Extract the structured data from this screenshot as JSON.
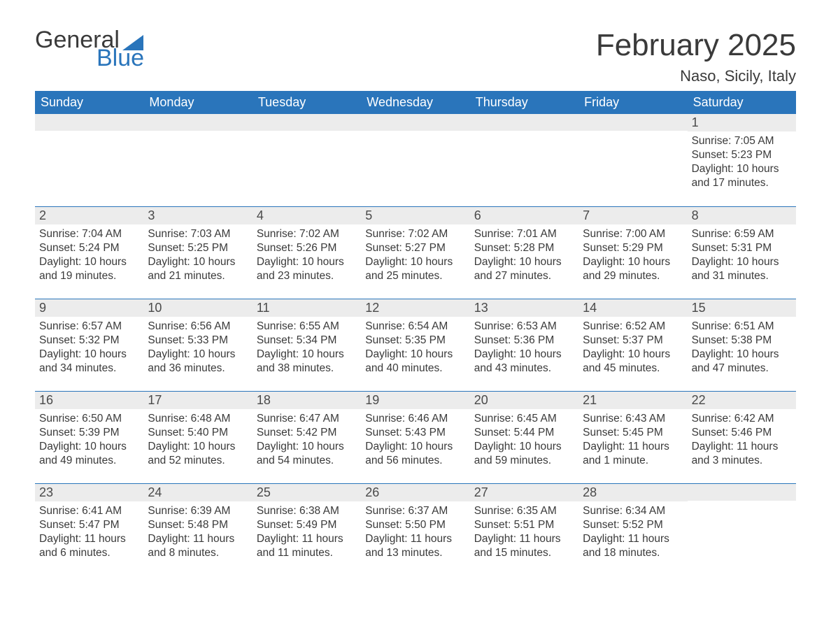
{
  "logo": {
    "word1": "General",
    "word2": "Blue"
  },
  "header": {
    "title": "February 2025",
    "location": "Naso, Sicily, Italy"
  },
  "colors": {
    "accent": "#2a75bb",
    "row_bg": "#ececec",
    "text": "#3a3a3a"
  },
  "weekdays": [
    "Sunday",
    "Monday",
    "Tuesday",
    "Wednesday",
    "Thursday",
    "Friday",
    "Saturday"
  ],
  "weeks": [
    [
      {
        "num": "",
        "sunrise": "",
        "sunset": "",
        "daylight": ""
      },
      {
        "num": "",
        "sunrise": "",
        "sunset": "",
        "daylight": ""
      },
      {
        "num": "",
        "sunrise": "",
        "sunset": "",
        "daylight": ""
      },
      {
        "num": "",
        "sunrise": "",
        "sunset": "",
        "daylight": ""
      },
      {
        "num": "",
        "sunrise": "",
        "sunset": "",
        "daylight": ""
      },
      {
        "num": "",
        "sunrise": "",
        "sunset": "",
        "daylight": ""
      },
      {
        "num": "1",
        "sunrise": "Sunrise: 7:05 AM",
        "sunset": "Sunset: 5:23 PM",
        "daylight": "Daylight: 10 hours and 17 minutes."
      }
    ],
    [
      {
        "num": "2",
        "sunrise": "Sunrise: 7:04 AM",
        "sunset": "Sunset: 5:24 PM",
        "daylight": "Daylight: 10 hours and 19 minutes."
      },
      {
        "num": "3",
        "sunrise": "Sunrise: 7:03 AM",
        "sunset": "Sunset: 5:25 PM",
        "daylight": "Daylight: 10 hours and 21 minutes."
      },
      {
        "num": "4",
        "sunrise": "Sunrise: 7:02 AM",
        "sunset": "Sunset: 5:26 PM",
        "daylight": "Daylight: 10 hours and 23 minutes."
      },
      {
        "num": "5",
        "sunrise": "Sunrise: 7:02 AM",
        "sunset": "Sunset: 5:27 PM",
        "daylight": "Daylight: 10 hours and 25 minutes."
      },
      {
        "num": "6",
        "sunrise": "Sunrise: 7:01 AM",
        "sunset": "Sunset: 5:28 PM",
        "daylight": "Daylight: 10 hours and 27 minutes."
      },
      {
        "num": "7",
        "sunrise": "Sunrise: 7:00 AM",
        "sunset": "Sunset: 5:29 PM",
        "daylight": "Daylight: 10 hours and 29 minutes."
      },
      {
        "num": "8",
        "sunrise": "Sunrise: 6:59 AM",
        "sunset": "Sunset: 5:31 PM",
        "daylight": "Daylight: 10 hours and 31 minutes."
      }
    ],
    [
      {
        "num": "9",
        "sunrise": "Sunrise: 6:57 AM",
        "sunset": "Sunset: 5:32 PM",
        "daylight": "Daylight: 10 hours and 34 minutes."
      },
      {
        "num": "10",
        "sunrise": "Sunrise: 6:56 AM",
        "sunset": "Sunset: 5:33 PM",
        "daylight": "Daylight: 10 hours and 36 minutes."
      },
      {
        "num": "11",
        "sunrise": "Sunrise: 6:55 AM",
        "sunset": "Sunset: 5:34 PM",
        "daylight": "Daylight: 10 hours and 38 minutes."
      },
      {
        "num": "12",
        "sunrise": "Sunrise: 6:54 AM",
        "sunset": "Sunset: 5:35 PM",
        "daylight": "Daylight: 10 hours and 40 minutes."
      },
      {
        "num": "13",
        "sunrise": "Sunrise: 6:53 AM",
        "sunset": "Sunset: 5:36 PM",
        "daylight": "Daylight: 10 hours and 43 minutes."
      },
      {
        "num": "14",
        "sunrise": "Sunrise: 6:52 AM",
        "sunset": "Sunset: 5:37 PM",
        "daylight": "Daylight: 10 hours and 45 minutes."
      },
      {
        "num": "15",
        "sunrise": "Sunrise: 6:51 AM",
        "sunset": "Sunset: 5:38 PM",
        "daylight": "Daylight: 10 hours and 47 minutes."
      }
    ],
    [
      {
        "num": "16",
        "sunrise": "Sunrise: 6:50 AM",
        "sunset": "Sunset: 5:39 PM",
        "daylight": "Daylight: 10 hours and 49 minutes."
      },
      {
        "num": "17",
        "sunrise": "Sunrise: 6:48 AM",
        "sunset": "Sunset: 5:40 PM",
        "daylight": "Daylight: 10 hours and 52 minutes."
      },
      {
        "num": "18",
        "sunrise": "Sunrise: 6:47 AM",
        "sunset": "Sunset: 5:42 PM",
        "daylight": "Daylight: 10 hours and 54 minutes."
      },
      {
        "num": "19",
        "sunrise": "Sunrise: 6:46 AM",
        "sunset": "Sunset: 5:43 PM",
        "daylight": "Daylight: 10 hours and 56 minutes."
      },
      {
        "num": "20",
        "sunrise": "Sunrise: 6:45 AM",
        "sunset": "Sunset: 5:44 PM",
        "daylight": "Daylight: 10 hours and 59 minutes."
      },
      {
        "num": "21",
        "sunrise": "Sunrise: 6:43 AM",
        "sunset": "Sunset: 5:45 PM",
        "daylight": "Daylight: 11 hours and 1 minute."
      },
      {
        "num": "22",
        "sunrise": "Sunrise: 6:42 AM",
        "sunset": "Sunset: 5:46 PM",
        "daylight": "Daylight: 11 hours and 3 minutes."
      }
    ],
    [
      {
        "num": "23",
        "sunrise": "Sunrise: 6:41 AM",
        "sunset": "Sunset: 5:47 PM",
        "daylight": "Daylight: 11 hours and 6 minutes."
      },
      {
        "num": "24",
        "sunrise": "Sunrise: 6:39 AM",
        "sunset": "Sunset: 5:48 PM",
        "daylight": "Daylight: 11 hours and 8 minutes."
      },
      {
        "num": "25",
        "sunrise": "Sunrise: 6:38 AM",
        "sunset": "Sunset: 5:49 PM",
        "daylight": "Daylight: 11 hours and 11 minutes."
      },
      {
        "num": "26",
        "sunrise": "Sunrise: 6:37 AM",
        "sunset": "Sunset: 5:50 PM",
        "daylight": "Daylight: 11 hours and 13 minutes."
      },
      {
        "num": "27",
        "sunrise": "Sunrise: 6:35 AM",
        "sunset": "Sunset: 5:51 PM",
        "daylight": "Daylight: 11 hours and 15 minutes."
      },
      {
        "num": "28",
        "sunrise": "Sunrise: 6:34 AM",
        "sunset": "Sunset: 5:52 PM",
        "daylight": "Daylight: 11 hours and 18 minutes."
      },
      {
        "num": "",
        "sunrise": "",
        "sunset": "",
        "daylight": ""
      }
    ]
  ]
}
